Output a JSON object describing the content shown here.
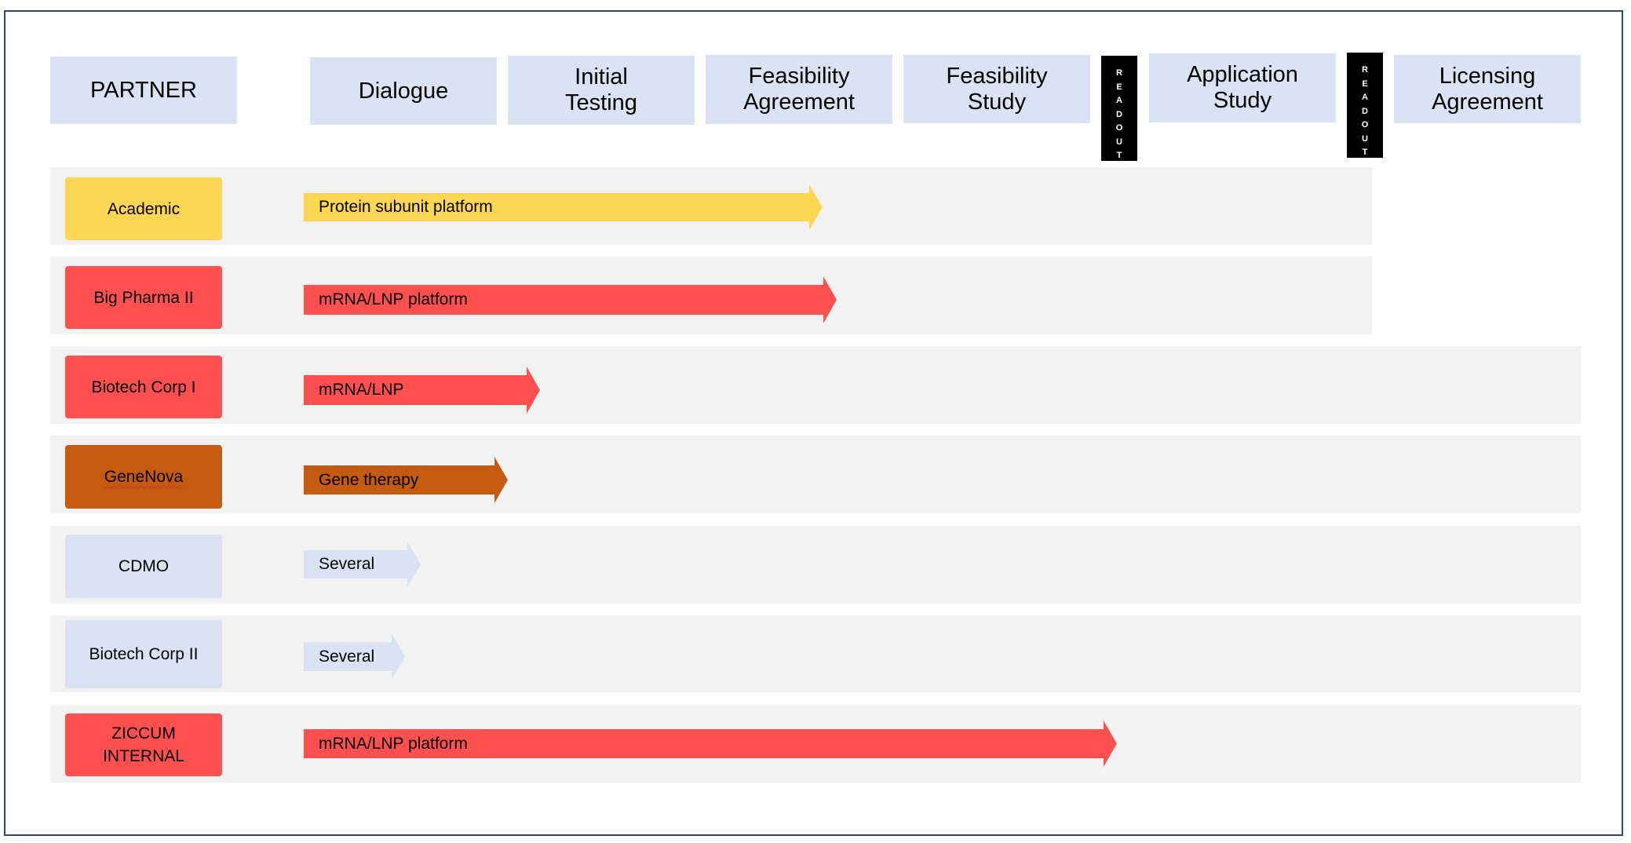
{
  "colors": {
    "header_fill": "#dae3f3",
    "band_fill": "#f2f2f2",
    "frame_border": "#2e4a74",
    "yellow": "#fdd654",
    "red": "#ff5050",
    "brown": "#c55a11",
    "light_blue": "#dae3f3",
    "readout_fill": "#000000"
  },
  "header": {
    "partner": "PARTNER",
    "stages": {
      "dialogue": "Dialogue",
      "initial_testing": "Initial\nTesting",
      "feasibility_agreement": "Feasibility\nAgreement",
      "feasibility_study": "Feasibility\nStudy",
      "application_study": "Application\nStudy",
      "licensing_agreement": "Licensing\nAgreement"
    },
    "readout_letters": [
      "R",
      "E",
      "A",
      "D",
      "O",
      "U",
      "T"
    ]
  },
  "rows": [
    {
      "partner": "Academic",
      "partner_color": "yellow",
      "program": "Protein subunit platform",
      "arrow_color": "yellow",
      "progress_stage": "Feasibility Agreement"
    },
    {
      "partner": "Big Pharma II",
      "partner_color": "red",
      "program": "mRNA/LNP platform",
      "arrow_color": "red",
      "progress_stage": "Feasibility Agreement"
    },
    {
      "partner": "Biotech Corp I",
      "partner_color": "red",
      "program": "mRNA/LNP",
      "arrow_color": "red",
      "progress_stage": "Initial Testing"
    },
    {
      "partner": "GeneNova",
      "partner_color": "brown",
      "program": "Gene therapy",
      "arrow_color": "brown",
      "progress_stage": "Dialogue"
    },
    {
      "partner": "CDMO",
      "partner_color": "light_blue",
      "program": "Several",
      "arrow_color": "light_blue",
      "progress_stage": "Dialogue"
    },
    {
      "partner": "Biotech Corp II",
      "partner_color": "light_blue",
      "program": "Several",
      "arrow_color": "light_blue",
      "progress_stage": "Dialogue"
    },
    {
      "partner": "ZICCUM\nINTERNAL",
      "partner_color": "red",
      "program": "mRNA/LNP platform",
      "arrow_color": "red",
      "progress_stage": "Feasibility Study"
    }
  ]
}
